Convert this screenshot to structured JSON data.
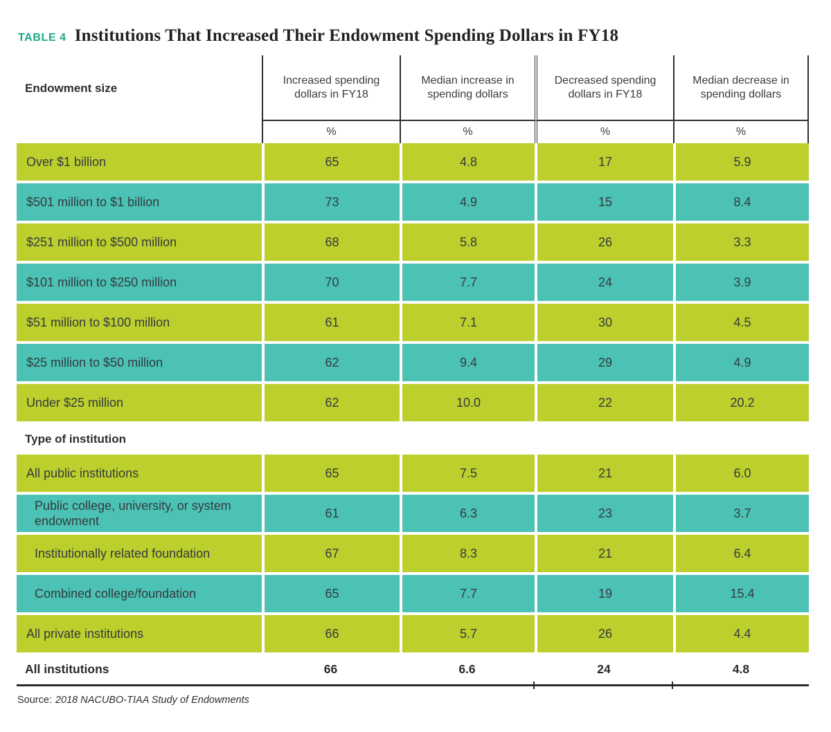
{
  "page": {
    "tag": "TABLE 4",
    "title": "Institutions That Increased Their Endowment Spending Dollars in FY18",
    "source_label": "Source:",
    "source_text": "2018 NACUBO-TIAA Study of Endowments"
  },
  "colors": {
    "lime_row": "#bccf2d",
    "teal_row": "#4cc2b4",
    "tag_accent": "#1aa68a",
    "rule": "#2c282a"
  },
  "header": {
    "row_group_label": "Endowment size",
    "columns": [
      {
        "label": "Increased spending dollars in FY18",
        "unit": "%"
      },
      {
        "label": "Median increase in spending dollars",
        "unit": "%"
      },
      {
        "label": "Decreased spending dollars in FY18",
        "unit": "%"
      },
      {
        "label": "Median decrease in spending dollars",
        "unit": "%"
      }
    ]
  },
  "rows_endowment": [
    {
      "label": "Over $1 billion",
      "values": [
        "65",
        "4.8",
        "17",
        "5.9"
      ]
    },
    {
      "label": "$501 million to $1 billion",
      "values": [
        "73",
        "4.9",
        "15",
        "8.4"
      ]
    },
    {
      "label": "$251 million to $500 million",
      "values": [
        "68",
        "5.8",
        "26",
        "3.3"
      ]
    },
    {
      "label": "$101 million to $250 million",
      "values": [
        "70",
        "7.7",
        "24",
        "3.9"
      ]
    },
    {
      "label": "$51 million to $100 million",
      "values": [
        "61",
        "7.1",
        "30",
        "4.5"
      ]
    },
    {
      "label": "$25 million to $50 million",
      "values": [
        "62",
        "9.4",
        "29",
        "4.9"
      ]
    },
    {
      "label": "Under $25 million",
      "values": [
        "62",
        "10.0",
        "22",
        "20.2"
      ]
    }
  ],
  "type_section": {
    "heading": "Type of institution",
    "rows": [
      {
        "label": "All public institutions",
        "values": [
          "65",
          "7.5",
          "21",
          "6.0"
        ]
      },
      {
        "label": "Public college, university, or system endowment",
        "values": [
          "61",
          "6.3",
          "23",
          "3.7"
        ]
      },
      {
        "label": "Institutionally related foundation",
        "values": [
          "67",
          "8.3",
          "21",
          "6.4"
        ]
      },
      {
        "label": "Combined college/foundation",
        "values": [
          "65",
          "7.7",
          "19",
          "15.4"
        ]
      },
      {
        "label": "All private institutions",
        "values": [
          "66",
          "5.7",
          "26",
          "4.4"
        ]
      }
    ]
  },
  "total_row": {
    "label": "All institutions",
    "values": [
      "66",
      "6.6",
      "24",
      "4.8"
    ]
  }
}
